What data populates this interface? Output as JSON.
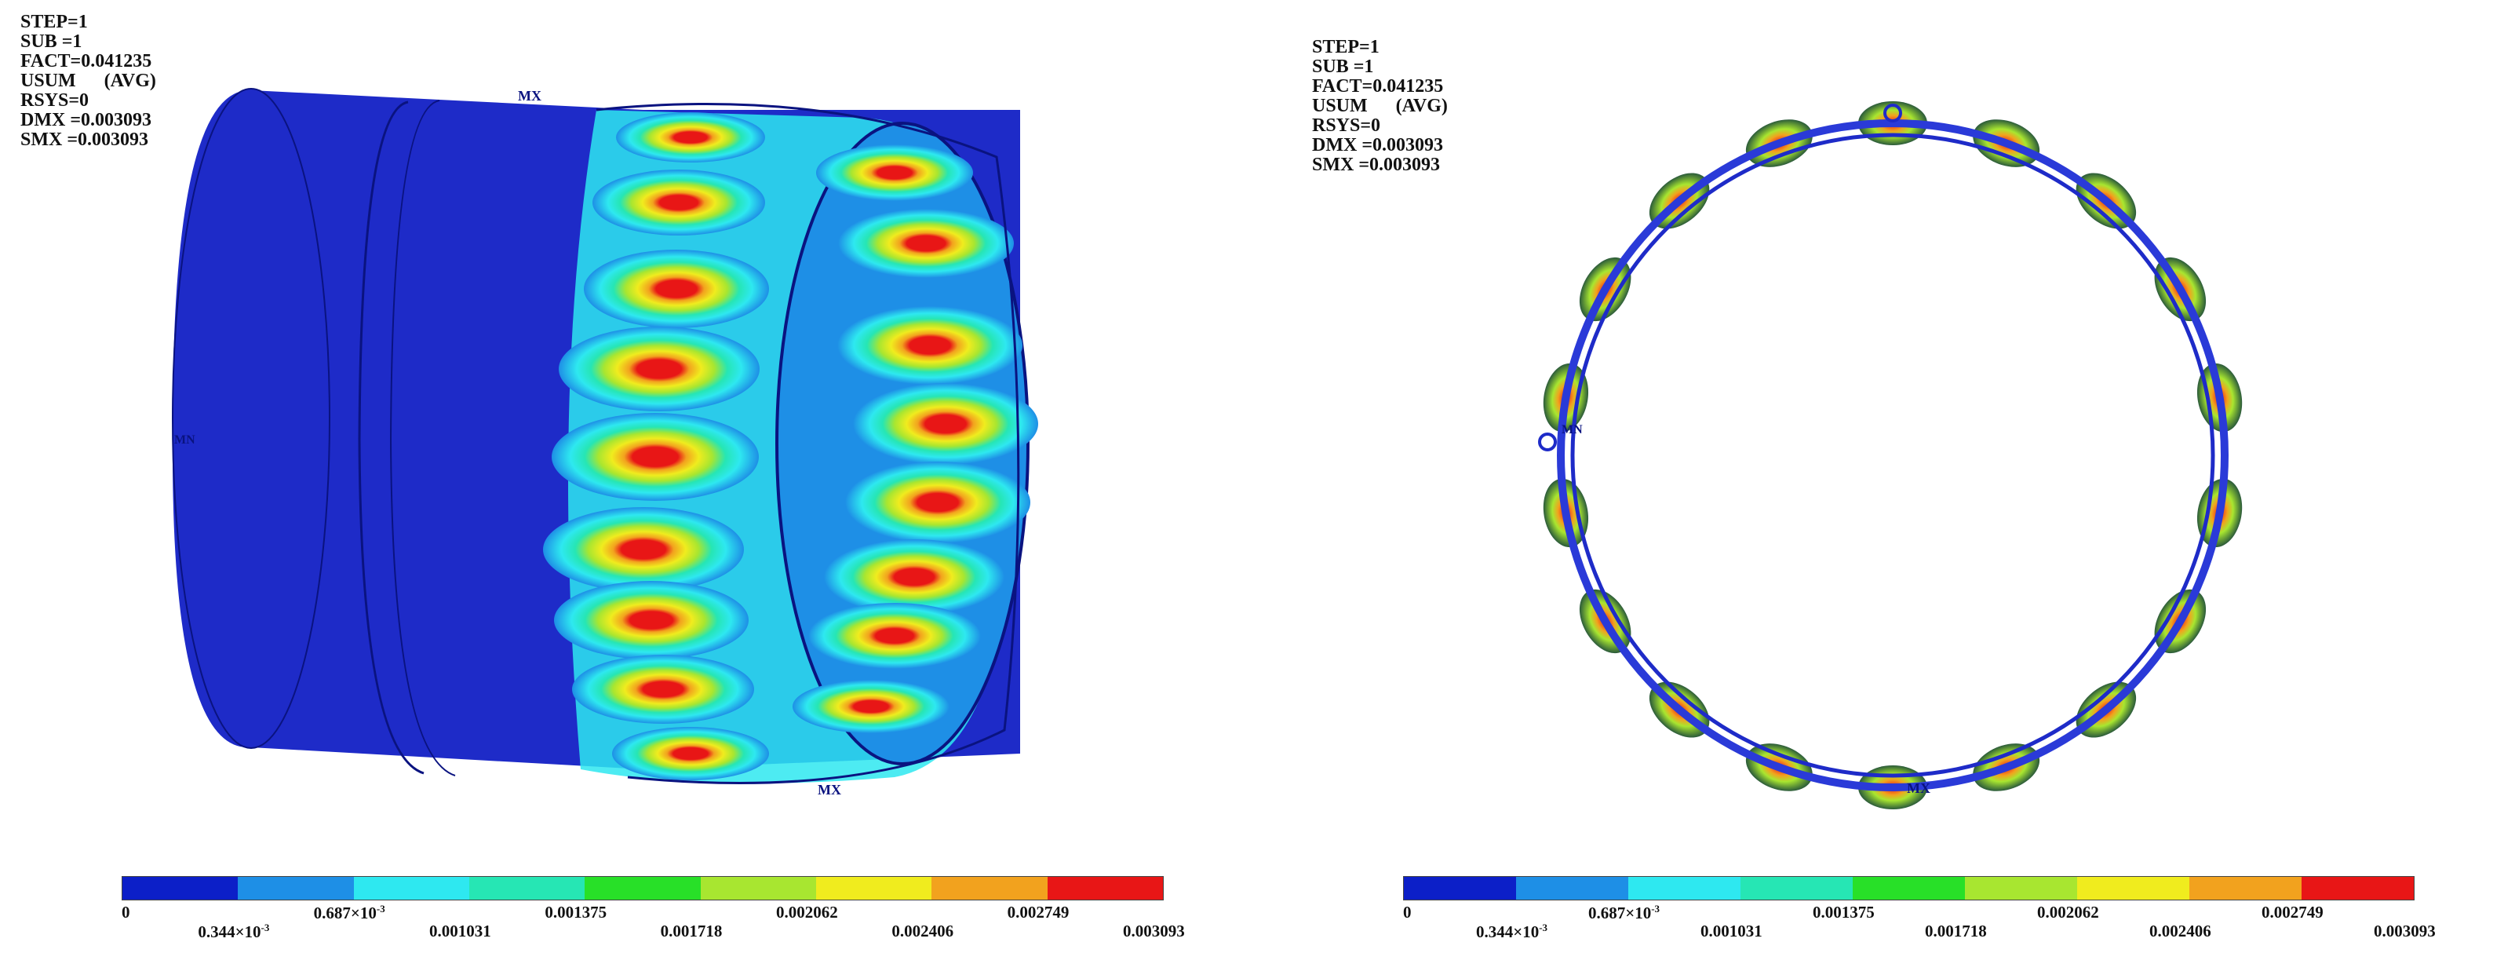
{
  "left": {
    "info_lines": [
      "STEP=1",
      "SUB =1",
      "FACT=0.041235",
      "USUM      (AVG)",
      "RSYS=0",
      "DMX =0.003093",
      "SMX =0.003093"
    ],
    "markers": {
      "mx": "MX",
      "mn": "MN",
      "mx_top": "MX"
    }
  },
  "right": {
    "info_lines": [
      "STEP=1",
      "SUB =1",
      "FACT=0.041235",
      "USUM      (AVG)",
      "RSYS=0",
      "DMX =0.003093",
      "SMX =0.003093"
    ],
    "markers": {
      "mx": "MX",
      "mn": "MN"
    }
  },
  "legend": {
    "colors": [
      "#0c1fc8",
      "#1e8fe6",
      "#2ee8f0",
      "#26e6b4",
      "#28e028",
      "#a8e630",
      "#f0ec1e",
      "#f2a21e",
      "#e81616"
    ],
    "labels": [
      "0",
      "0.344×10",
      "0.687×10",
      "0.001031",
      "0.001375",
      "0.001718",
      "0.002062",
      "0.002406",
      "0.002749",
      "0.003093"
    ],
    "superscript": "-3"
  },
  "colors": {
    "body_blue": "#1e2bc8",
    "dark_blue": "#111a9a",
    "ring_blue": "#2a3ad8"
  }
}
